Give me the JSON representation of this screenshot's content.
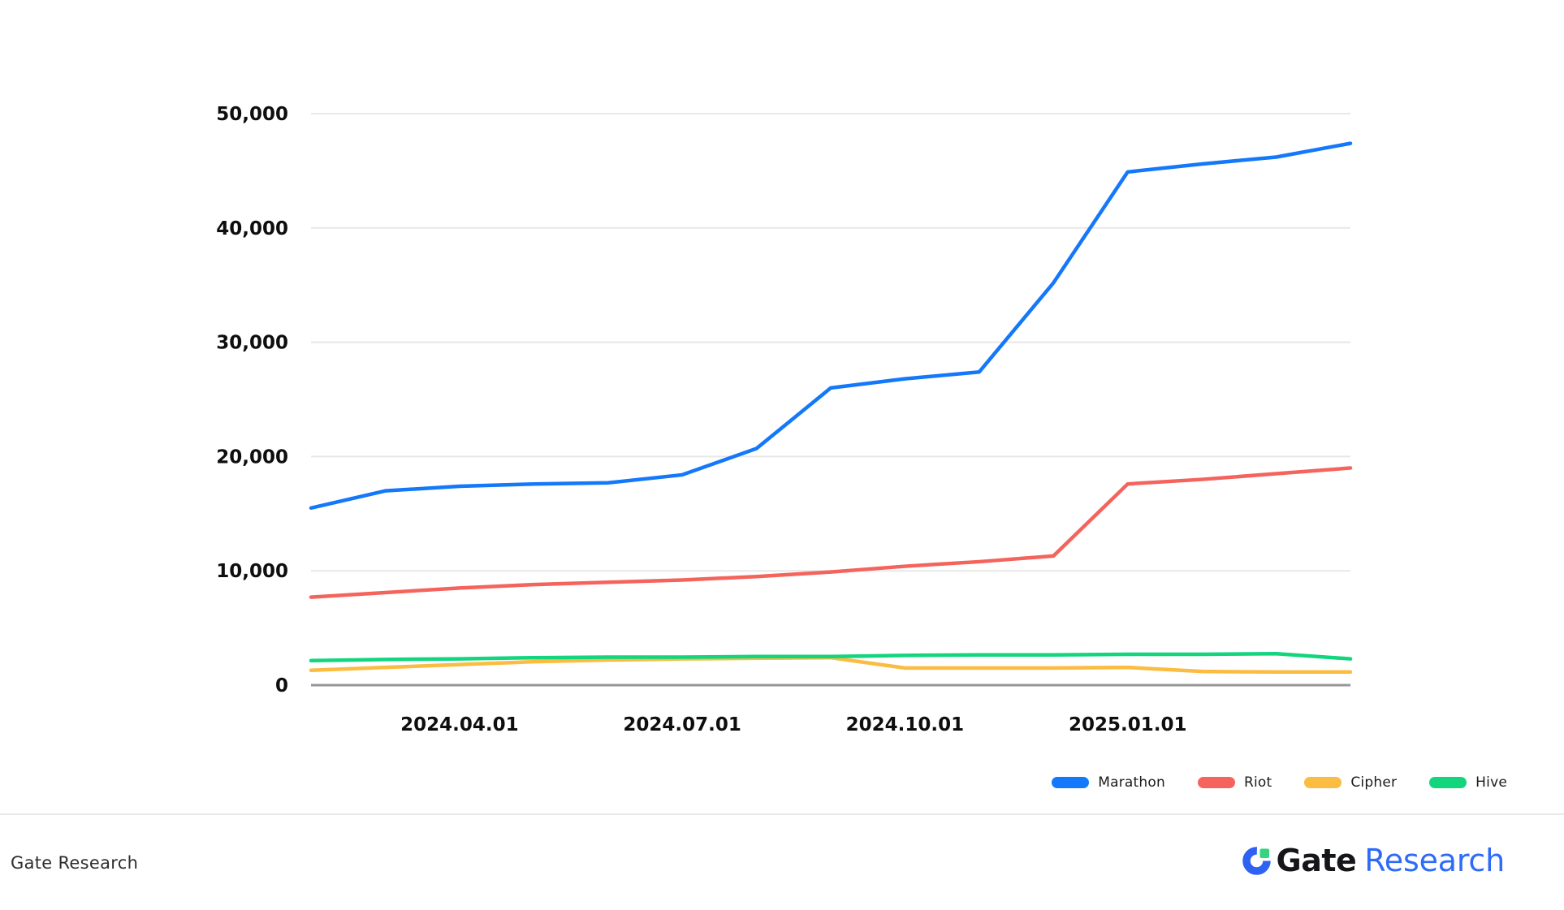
{
  "chart_data": {
    "type": "line",
    "x": [
      "2024.02.01",
      "2024.03.01",
      "2024.04.01",
      "2024.05.01",
      "2024.06.01",
      "2024.07.01",
      "2024.08.01",
      "2024.09.01",
      "2024.10.01",
      "2024.11.01",
      "2024.12.01",
      "2025.01.01",
      "2025.02.01",
      "2025.03.01",
      "2025.04.01"
    ],
    "series": [
      {
        "name": "Marathon",
        "color": "#1478fa",
        "values": [
          15500,
          17000,
          17400,
          17600,
          17700,
          18400,
          20700,
          26000,
          26800,
          27400,
          35200,
          44900,
          45600,
          46200,
          47400
        ]
      },
      {
        "name": "Riot",
        "color": "#f4645c",
        "values": [
          7700,
          8100,
          8500,
          8800,
          9000,
          9200,
          9500,
          9900,
          10400,
          10800,
          11300,
          17600,
          18000,
          18500,
          19000
        ]
      },
      {
        "name": "Cipher",
        "color": "#fbbc42",
        "values": [
          1300,
          1550,
          1800,
          2050,
          2200,
          2300,
          2350,
          2400,
          1500,
          1500,
          1500,
          1550,
          1200,
          1150,
          1150
        ]
      },
      {
        "name": "Hive",
        "color": "#12d57e",
        "values": [
          2150,
          2250,
          2300,
          2400,
          2450,
          2450,
          2500,
          2500,
          2600,
          2650,
          2650,
          2700,
          2700,
          2750,
          2300
        ]
      }
    ],
    "ylim": [
      0,
      50000
    ],
    "y_ticks": [
      0,
      10000,
      20000,
      30000,
      40000,
      50000
    ],
    "y_tick_labels": [
      "0",
      "10,000",
      "20,000",
      "30,000",
      "40,000",
      "50,000"
    ],
    "x_tick_indices": [
      2,
      5,
      8,
      11
    ],
    "x_tick_labels": [
      "2024.04.01",
      "2024.07.01",
      "2024.10.01",
      "2025.01.01"
    ],
    "grid": "horizontal",
    "legend_position": "bottom-right",
    "colors": {
      "gridline": "#e8e8e8",
      "zero_axis": "#969696",
      "tick_text": "#0e0e0e"
    }
  },
  "footer": {
    "left_text": "Gate Research",
    "logo_text_bold": "Gate",
    "logo_text_light": "Research",
    "logo_blue": "#2d62f2",
    "logo_green": "#35d57f"
  }
}
